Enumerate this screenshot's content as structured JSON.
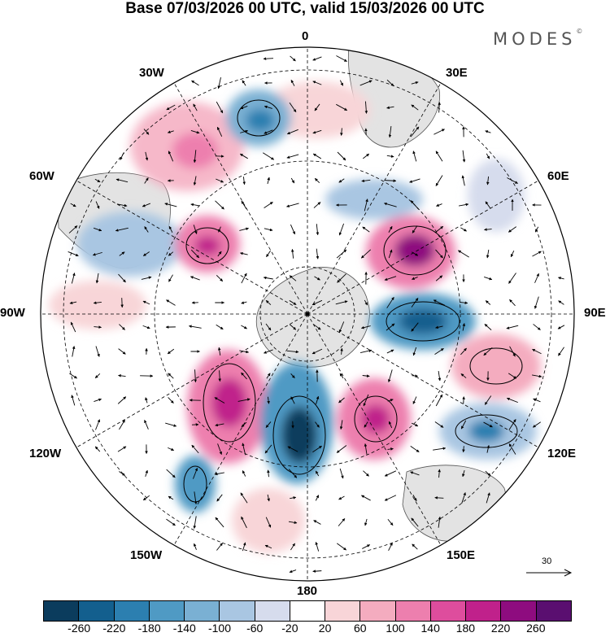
{
  "header": {
    "title": "Base 07/03/2026 00 UTC, valid 15/03/2026 00 UTC",
    "brand": "MODES",
    "brand_mark": "©"
  },
  "map": {
    "projection": "south-polar-stereographic",
    "longitude_labels": {
      "top": "0",
      "top_left": "30W",
      "top_right": "30E",
      "upper_left": "60W",
      "upper_right": "60E",
      "left": "90W",
      "right": "90E",
      "lower_left": "120W",
      "lower_right": "120E",
      "bottom_left": "150W",
      "bottom_right": "150E",
      "bottom": "180"
    },
    "reference_vector": {
      "label": "30"
    }
  },
  "colorbar": {
    "tick_labels": [
      "-260",
      "-220",
      "-180",
      "-140",
      "-100",
      "-60",
      "-20",
      "20",
      "60",
      "100",
      "140",
      "180",
      "220",
      "260"
    ],
    "colors": [
      "#0b3c5d",
      "#135f8e",
      "#2c7fb0",
      "#4f9ac4",
      "#7ab0d3",
      "#a9c6e2",
      "#d6dced",
      "#ffffff",
      "#f8d5d8",
      "#f4acbf",
      "#ed7fae",
      "#de4d9d",
      "#c0218b",
      "#8e0c7f",
      "#5a0f70"
    ]
  }
}
